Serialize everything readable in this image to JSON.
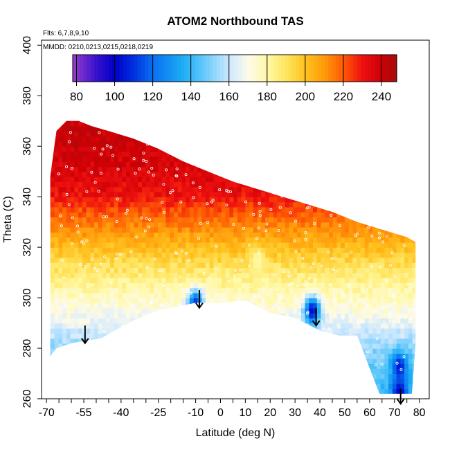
{
  "chart_data": {
    "type": "heatmap",
    "title": "ATOM2 Northbound TAS",
    "notes": [
      "Flts: 6,7,8,9,10",
      "MMDD: 0210,0213,0215,0218,0219"
    ],
    "xlabel": "Latitude (deg N)",
    "ylabel": "Theta (C)",
    "xlim": [
      -72,
      84
    ],
    "ylim": [
      260,
      402
    ],
    "x_tick_labels": [
      -70,
      -55,
      -40,
      -25,
      -10,
      0,
      10,
      20,
      30,
      40,
      50,
      60,
      70,
      80
    ],
    "x_minor_ticks": [
      -65,
      -60,
      -50,
      -45,
      -35,
      -30,
      -20,
      -15,
      -5,
      5,
      15,
      25,
      35,
      45,
      55,
      65,
      75
    ],
    "y_ticks": [
      260,
      280,
      300,
      320,
      340,
      360,
      380,
      400
    ],
    "colorbar": {
      "ticks": [
        80,
        100,
        120,
        140,
        160,
        180,
        200,
        220,
        240
      ],
      "range": [
        78,
        248
      ],
      "stops": [
        [
          78,
          "#9a3dcc"
        ],
        [
          90,
          "#3a12cc"
        ],
        [
          100,
          "#0000c8"
        ],
        [
          110,
          "#0030e0"
        ],
        [
          120,
          "#0a6ff0"
        ],
        [
          135,
          "#1aaaf5"
        ],
        [
          145,
          "#55c4fa"
        ],
        [
          160,
          "#cde8ff"
        ],
        [
          170,
          "#fdfaea"
        ],
        [
          180,
          "#fff9a8"
        ],
        [
          190,
          "#ffe560"
        ],
        [
          200,
          "#ffc21e"
        ],
        [
          210,
          "#ff9a0a"
        ],
        [
          220,
          "#ff5a04"
        ],
        [
          230,
          "#ee1010"
        ],
        [
          240,
          "#cc0005"
        ],
        [
          248,
          "#a60c0c"
        ]
      ]
    },
    "domain_boundary": {
      "top": [
        [
          -68.5,
          348
        ],
        [
          -66,
          366
        ],
        [
          -62,
          370
        ],
        [
          -57,
          370
        ],
        [
          -52,
          368
        ],
        [
          -45,
          366
        ],
        [
          -35,
          363
        ],
        [
          -25,
          359
        ],
        [
          -15,
          354
        ],
        [
          -5,
          350
        ],
        [
          5,
          346
        ],
        [
          15,
          343
        ],
        [
          25,
          340
        ],
        [
          35,
          337
        ],
        [
          45,
          334
        ],
        [
          55,
          330
        ],
        [
          65,
          327
        ],
        [
          75,
          324
        ],
        [
          78.5,
          322
        ]
      ],
      "bottom": [
        [
          78.5,
          282
        ],
        [
          77,
          262
        ],
        [
          64,
          262
        ],
        [
          55,
          285
        ],
        [
          48,
          285
        ],
        [
          40,
          287
        ],
        [
          30,
          292
        ],
        [
          20,
          294
        ],
        [
          10,
          299
        ],
        [
          0,
          298
        ],
        [
          -10,
          298
        ],
        [
          -25,
          295
        ],
        [
          -35,
          291
        ],
        [
          -48,
          284
        ],
        [
          -60,
          282
        ],
        [
          -66,
          280
        ],
        [
          -68.5,
          277
        ]
      ]
    },
    "temperature_field": {
      "description_free": true,
      "base_profile": [
        [
          262,
          140
        ],
        [
          280,
          152
        ],
        [
          292,
          168
        ],
        [
          302,
          178
        ],
        [
          312,
          190
        ],
        [
          322,
          204
        ],
        [
          332,
          218
        ],
        [
          342,
          232
        ],
        [
          360,
          240
        ]
      ],
      "anomalies": [
        {
          "x": -10,
          "y": 298,
          "value": 110
        },
        {
          "x": 37,
          "y": 295,
          "value": 100
        },
        {
          "x": 72,
          "y": 273,
          "value": 105
        },
        {
          "x": 72,
          "y": 263,
          "value": 100
        },
        {
          "x": -45,
          "y": 290,
          "value": 165
        },
        {
          "x": 15,
          "y": 315,
          "value": 180
        }
      ]
    },
    "arrows": [
      [
        -54.5,
        289,
        282
      ],
      [
        -8.5,
        303,
        296
      ],
      [
        38.5,
        296,
        289
      ],
      [
        72.5,
        264,
        258
      ]
    ],
    "track_points_count": 400
  }
}
